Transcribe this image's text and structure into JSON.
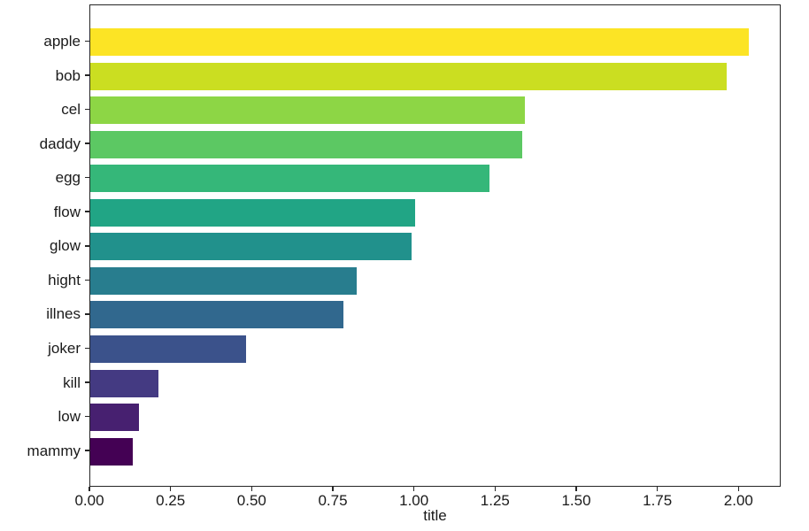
{
  "chart_data": {
    "type": "bar",
    "orientation": "horizontal",
    "title": "",
    "xlabel": "title",
    "ylabel": "",
    "categories": [
      "apple",
      "bob",
      "cel",
      "daddy",
      "egg",
      "flow",
      "glow",
      "hight",
      "illnes",
      "joker",
      "kill",
      "low",
      "mammy"
    ],
    "values": [
      2.03,
      1.96,
      1.34,
      1.33,
      1.23,
      1.0,
      0.99,
      0.82,
      0.78,
      0.48,
      0.21,
      0.15,
      0.13
    ],
    "bar_colors": [
      "#FCE425",
      "#CBDE21",
      "#8DD645",
      "#5CC863",
      "#35B779",
      "#21A585",
      "#21918C",
      "#287D8E",
      "#31688E",
      "#3B528B",
      "#443A82",
      "#472070",
      "#440154"
    ],
    "colormap": "viridis",
    "xlim": [
      0,
      2.13
    ],
    "xticks": [
      "0.00",
      "0.25",
      "0.50",
      "0.75",
      "1.00",
      "1.25",
      "1.50",
      "1.75",
      "2.00"
    ],
    "xtick_values": [
      0,
      0.25,
      0.5,
      0.75,
      1.0,
      1.25,
      1.5,
      1.75,
      2.0
    ],
    "grid": false,
    "legend_position": "none",
    "background_color": "#ffffff",
    "spine_color": "#262626",
    "text_color": "#1a1a1a"
  }
}
